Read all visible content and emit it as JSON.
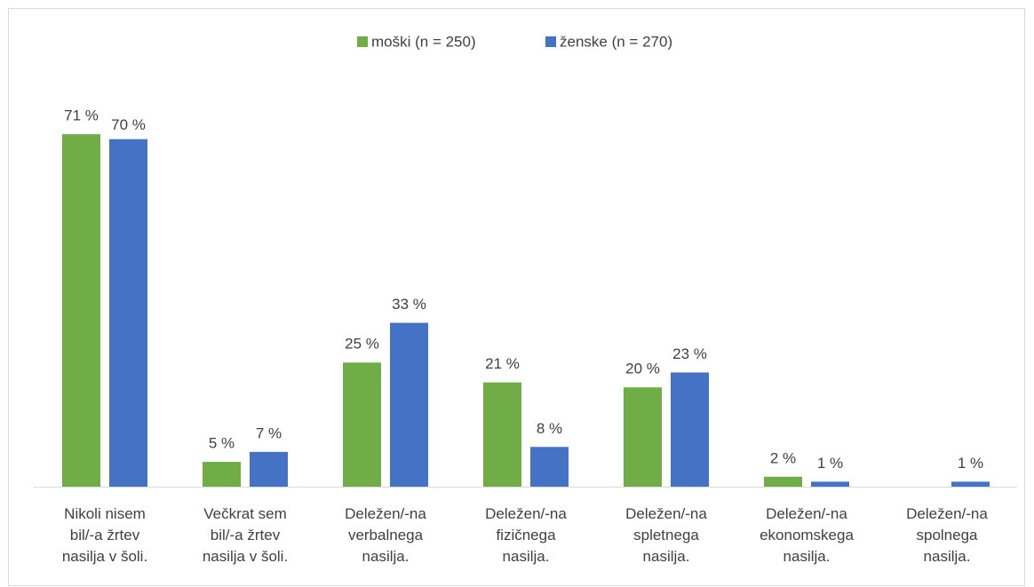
{
  "chart_data": {
    "type": "bar",
    "categories": [
      "Nikoli nisem\nbil/-a žrtev\nnasilja v šoli.",
      "Večkrat sem\nbil/-a žrtev\nnasilja v šoli.",
      "Deležen/-na\nverbalnega\nnasilja.",
      "Deležen/-na\nfizičnega\nnasilja.",
      "Deležen/-na\nspletnega\nnasilja.",
      "Deležen/-na\nekonomskega\nnasilja.",
      "Deležen/-na\nspolnega\nnasilja."
    ],
    "series": [
      {
        "name": "moški (n = 250)",
        "color": "#70ad47",
        "values": [
          71,
          5,
          25,
          21,
          20,
          2,
          null
        ],
        "value_labels": [
          "71 %",
          "5 %",
          "25 %",
          "21 %",
          "20 %",
          "2 %",
          null
        ]
      },
      {
        "name": "ženske (n = 270)",
        "color": "#4472c4",
        "values": [
          70,
          7,
          33,
          8,
          23,
          1,
          1
        ],
        "value_labels": [
          "70 %",
          "7 %",
          "33 %",
          "8 %",
          "23 %",
          "1 %",
          "1 %"
        ]
      }
    ],
    "legend": "top"
  }
}
